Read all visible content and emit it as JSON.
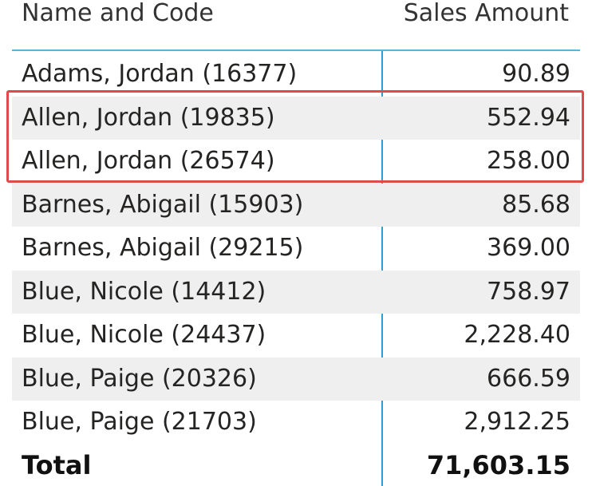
{
  "table": {
    "headers": {
      "name": "Name and Code",
      "amount": "Sales Amount"
    },
    "rows": [
      {
        "name": "Adams, Jordan (16377)",
        "amount": "90.89"
      },
      {
        "name": "Allen, Jordan (19835)",
        "amount": "552.94"
      },
      {
        "name": "Allen, Jordan (26574)",
        "amount": "258.00"
      },
      {
        "name": "Barnes, Abigail (15903)",
        "amount": "85.68"
      },
      {
        "name": "Barnes, Abigail (29215)",
        "amount": "369.00"
      },
      {
        "name": "Blue, Nicole (14412)",
        "amount": "758.97"
      },
      {
        "name": "Blue, Nicole (24437)",
        "amount": "2,228.40"
      },
      {
        "name": "Blue, Paige (20326)",
        "amount": "666.59"
      },
      {
        "name": "Blue, Paige (21703)",
        "amount": "2,912.25"
      }
    ],
    "total": {
      "label": "Total",
      "amount": "71,603.15"
    }
  },
  "colors": {
    "header_rule": "#5eb3d6",
    "column_divider": "#2f9fd0",
    "row_shade": "#efefef",
    "highlight_border": "#e04a4a"
  }
}
